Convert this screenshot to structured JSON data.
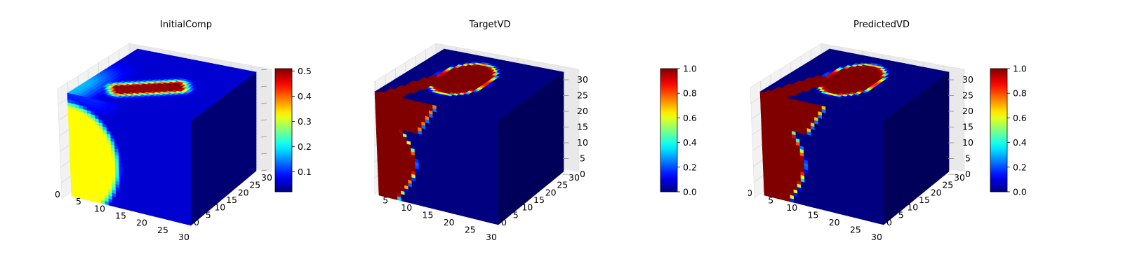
{
  "chart_data": [
    {
      "type": "3d-voxel",
      "title": "InitialComp",
      "description": "Low values throughout; one high-value bar on the top face and a large pale region on the front face",
      "front_face_region": {
        "shape": "half-disk",
        "side": "left",
        "value": 0.28
      },
      "top_face_feature": {
        "shape": "bar",
        "value": 0.5,
        "halo": 0.2
      },
      "background_value": 0.03,
      "x_ticks": [
        "0",
        "5",
        "10",
        "15",
        "20",
        "25",
        "30"
      ],
      "y_ticks": [
        "0",
        "5",
        "10",
        "15",
        "20",
        "25",
        "30"
      ],
      "z_ticks": [],
      "colorbar": {
        "min": 0.02,
        "max": 0.51,
        "ticks": [
          "0.1",
          "0.2",
          "0.3",
          "0.4",
          "0.5"
        ],
        "tick_values": [
          0.1,
          0.2,
          0.3,
          0.4,
          0.5
        ]
      },
      "colormap": "jet"
    },
    {
      "type": "3d-voxel",
      "title": "TargetVD",
      "description": "Binary volume: a high-value region filling the left part of the front face and a rounded blob on the top face",
      "background_value": 0.0,
      "feature_value": 1.0,
      "x_ticks": [
        "0",
        "5",
        "10",
        "15",
        "20",
        "25",
        "30"
      ],
      "y_ticks": [
        "0",
        "5",
        "10",
        "15",
        "20",
        "25",
        "30"
      ],
      "z_ticks": [
        "0",
        "5",
        "10",
        "15",
        "20",
        "25",
        "30"
      ],
      "colorbar": {
        "min": 0.0,
        "max": 1.0,
        "ticks": [
          "0.0",
          "0.2",
          "0.4",
          "0.6",
          "0.8",
          "1.0"
        ],
        "tick_values": [
          0,
          0.2,
          0.4,
          0.6,
          0.8,
          1.0
        ]
      },
      "colormap": "jet"
    },
    {
      "type": "3d-voxel",
      "title": "PredictedVD",
      "description": "Predicted binary volume, very close to the target: a high-value region on the left part of the front face and a blob on the top face",
      "background_value": 0.0,
      "feature_value": 1.0,
      "x_ticks": [
        "0",
        "5",
        "10",
        "15",
        "20",
        "25",
        "30"
      ],
      "y_ticks": [
        "0",
        "5",
        "10",
        "15",
        "20",
        "25",
        "30"
      ],
      "z_ticks": [
        "0",
        "5",
        "10",
        "15",
        "20",
        "25",
        "30"
      ],
      "colorbar": {
        "min": 0.0,
        "max": 1.0,
        "ticks": [
          "0.0",
          "0.2",
          "0.4",
          "0.6",
          "0.8",
          "1.0"
        ],
        "tick_values": [
          0,
          0.2,
          0.4,
          0.6,
          0.8,
          1.0
        ]
      },
      "colormap": "jet"
    }
  ]
}
